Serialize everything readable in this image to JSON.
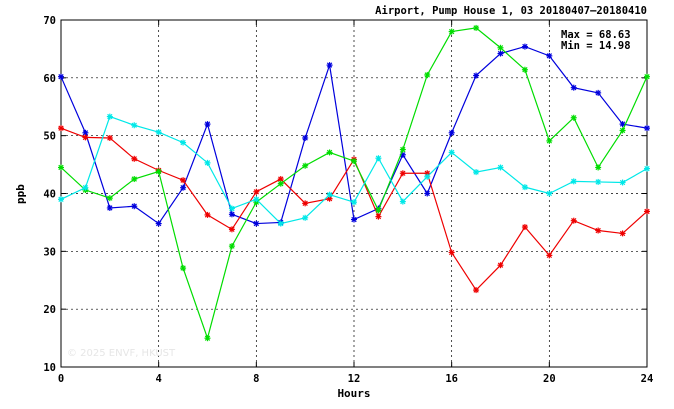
{
  "chart_data": {
    "type": "line",
    "title": "Airport, Pump House 1, 03 20180407–20180410",
    "xlabel": "Hours",
    "ylabel": "ppb",
    "xlim": [
      0,
      24
    ],
    "ylim": [
      10,
      70
    ],
    "x_ticks": [
      0,
      4,
      8,
      12,
      16,
      20,
      24
    ],
    "y_ticks": [
      10,
      20,
      30,
      40,
      50,
      60,
      70
    ],
    "x_tick_labels": [
      "0",
      "4",
      "8",
      "12",
      "16",
      "20",
      "24"
    ],
    "y_tick_labels": [
      "10",
      "20",
      "30",
      "40",
      "50",
      "60",
      "70"
    ],
    "grid": true,
    "marker": "asterisk",
    "stats": {
      "max": "Max = 68.63",
      "min": "Min = 14.98"
    },
    "watermark": "© 2025  ENVF, HKUST",
    "x": [
      0,
      1,
      2,
      3,
      4,
      5,
      6,
      7,
      8,
      9,
      10,
      11,
      12,
      13,
      14,
      15,
      16,
      17,
      18,
      19,
      20,
      21,
      22,
      23,
      24
    ],
    "series": [
      {
        "color": "#0000dd",
        "values": [
          60.2,
          50.5,
          37.5,
          37.8,
          34.8,
          41.0,
          52.0,
          36.4,
          34.8,
          35.0,
          49.6,
          62.2,
          35.5,
          37.4,
          46.7,
          40.0,
          50.5,
          60.4,
          64.2,
          65.4,
          63.8,
          58.3,
          57.4,
          52.0,
          51.3
        ]
      },
      {
        "color": "#ee0000",
        "values": [
          51.3,
          49.7,
          49.6,
          46.0,
          44.0,
          42.3,
          36.3,
          33.8,
          40.3,
          42.5,
          38.3,
          39.1,
          45.9,
          36.0,
          43.5,
          43.5,
          29.8,
          23.3,
          27.6,
          34.2,
          29.3,
          35.3,
          33.6,
          33.1,
          36.9
        ]
      },
      {
        "color": "#00dd00",
        "values": [
          44.5,
          40.6,
          39.2,
          42.5,
          43.8,
          27.1,
          14.98,
          30.9,
          38.5,
          41.7,
          44.8,
          47.1,
          45.6,
          37.1,
          47.6,
          60.5,
          68.0,
          68.63,
          65.2,
          61.4,
          49.1,
          53.1,
          44.5,
          50.9,
          60.2
        ]
      },
      {
        "color": "#00e8e8",
        "values": [
          39.0,
          41.0,
          53.3,
          51.8,
          50.6,
          48.8,
          45.3,
          37.4,
          39.0,
          34.8,
          35.8,
          39.8,
          38.5,
          46.1,
          38.6,
          42.9,
          47.1,
          43.7,
          44.5,
          41.1,
          40.0,
          42.1,
          42.0,
          41.9,
          44.3
        ]
      }
    ]
  }
}
